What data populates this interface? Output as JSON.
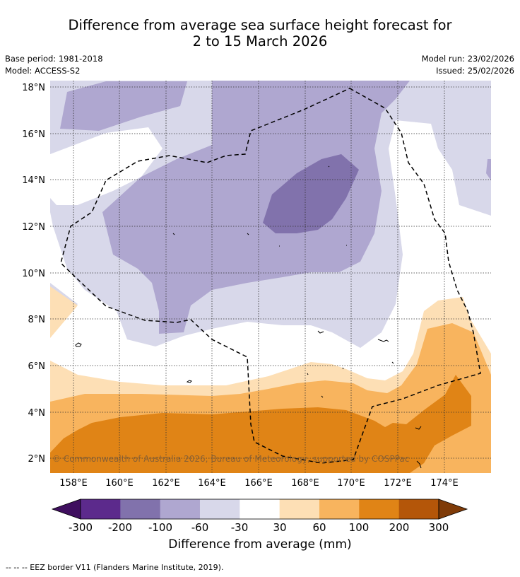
{
  "header": {
    "title_line1": "Difference from average sea surface height forecast for",
    "title_line2": "2 to 15 March 2026",
    "base_period": "Base period: 1981-2018",
    "model": "Model: ACCESS-S2",
    "model_run": "Model run: 23/02/2026",
    "issued": "Issued: 25/02/2026"
  },
  "map": {
    "lat_labels": [
      "18°N",
      "16°N",
      "14°N",
      "12°N",
      "10°N",
      "8°N",
      "6°N",
      "4°N",
      "2°N"
    ],
    "lon_labels": [
      "158°E",
      "160°E",
      "162°E",
      "164°E",
      "166°E",
      "168°E",
      "170°E",
      "172°E",
      "174°E"
    ],
    "copyright": "© Commonwealth of Australia 2026, Bureau of Meteorology, supported by COSPPac"
  },
  "legend": {
    "ticks": [
      "-300",
      "-200",
      "-100",
      "-60",
      "-30",
      "30",
      "60",
      "100",
      "200",
      "300"
    ],
    "colors": [
      "#3f0f5f",
      "#5c2a8c",
      "#8172ac",
      "#afa7d0",
      "#d8d8ea",
      "#ffffff",
      "#fddfb5",
      "#f8b45e",
      "#e08416",
      "#b45609",
      "#7f3b08"
    ],
    "title": "Difference from average (mm)"
  },
  "footnote": "--  --  -- EEZ border V11 (Flanders Marine Institute, 2019)."
}
